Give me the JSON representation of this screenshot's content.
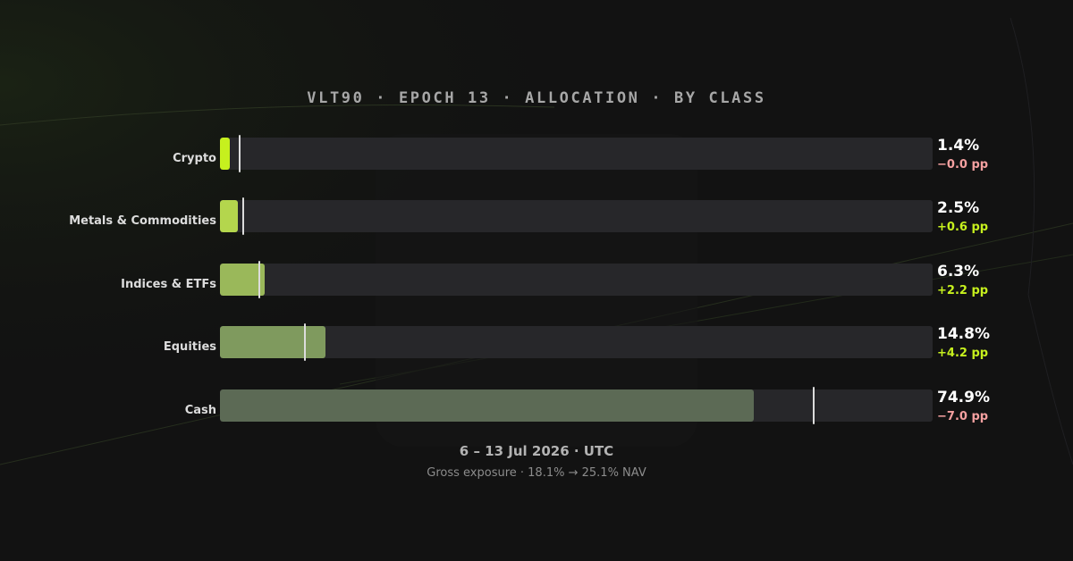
{
  "chart_data": {
    "type": "bar",
    "orientation": "horizontal",
    "title": "VLT90 · EPOCH 13 · ALLOCATION · BY CLASS",
    "categories": [
      "Crypto",
      "Metals & Commodities",
      "Indices & ETFs",
      "Equities",
      "Cash"
    ],
    "values": [
      1.4,
      2.5,
      6.3,
      14.8,
      74.9
    ],
    "value_labels": [
      "1.4%",
      "2.5%",
      "6.3%",
      "14.8%",
      "74.9%"
    ],
    "prior_values": [
      1.4,
      1.9,
      4.1,
      10.6,
      81.9
    ],
    "deltas": [
      -0.0,
      0.6,
      2.2,
      4.2,
      -7.0
    ],
    "delta_labels": [
      "−0.0 pp",
      "+0.6 pp",
      "+2.2 pp",
      "+4.2 pp",
      "−7.0 pp"
    ],
    "xlim": [
      0,
      100
    ],
    "bar_colors": [
      "#c6f01e",
      "#b4d64d",
      "#9ab85a",
      "#7f9a5e",
      "#5c6a55"
    ],
    "grid": false,
    "legend": "none"
  },
  "colors": {
    "positive": "#c6f01e",
    "negative": "#f4a0a0",
    "track": "#27272a",
    "marker": "#dcdcdc"
  },
  "footer": {
    "date": "6 – 13 Jul 2026 · UTC",
    "note": "Gross exposure · 18.1% → 25.1% NAV"
  }
}
